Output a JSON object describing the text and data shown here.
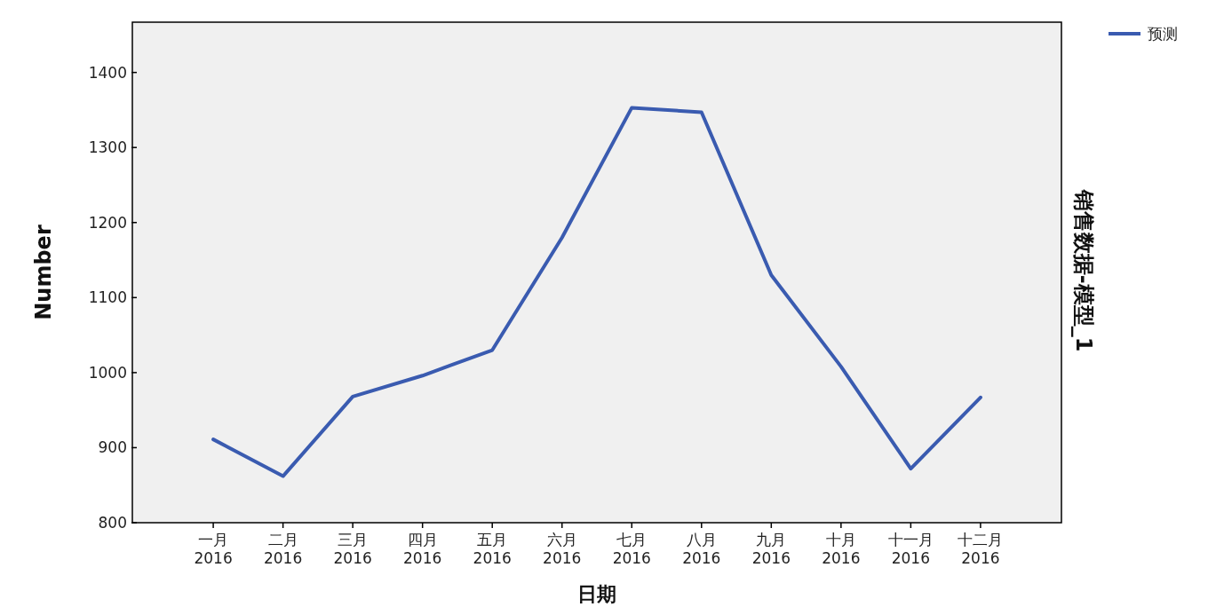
{
  "chart_data": {
    "type": "line",
    "categories": [
      "一月\n2016",
      "二月\n2016",
      "三月\n2016",
      "四月\n2016",
      "五月\n2016",
      "六月\n2016",
      "七月\n2016",
      "八月\n2016",
      "九月\n2016",
      "十月\n2016",
      "十一月\n2016",
      "十二月\n2016"
    ],
    "series": [
      {
        "name": "预测",
        "color": "#3a5bb0",
        "values": [
          911,
          862,
          968,
          996,
          1030,
          1180,
          1353,
          1347,
          1130,
          1008,
          872,
          967
        ]
      }
    ],
    "xlabel": "日期",
    "ylabel": "Number",
    "y2label": "销售数据-模型_1",
    "ylim": [
      800,
      1467
    ],
    "yticks": [
      800,
      900,
      1000,
      1100,
      1200,
      1300,
      1400
    ],
    "grid": false,
    "legend": "top right",
    "marker": "none",
    "line_style": "solid"
  }
}
